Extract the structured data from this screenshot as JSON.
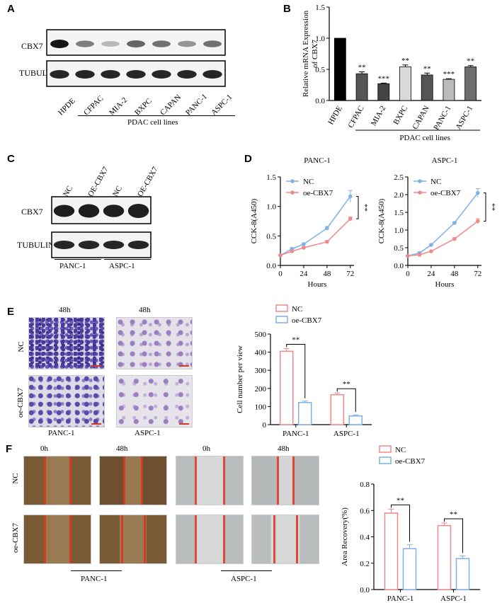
{
  "panels": {
    "A": "A",
    "B": "B",
    "C": "C",
    "D": "D",
    "E": "E",
    "F": "F"
  },
  "blotA": {
    "rows": [
      "CBX7",
      "TUBULIN"
    ],
    "lanes": [
      "HPDE",
      "CFPAC",
      "MIA-2",
      "BXPC",
      "CAPAN",
      "PANC-1",
      "ASPC-1"
    ],
    "group_label": "PDAC cell lines",
    "cbx7_intensity": [
      1.0,
      0.55,
      0.3,
      0.65,
      0.6,
      0.45,
      0.6
    ]
  },
  "blotC": {
    "rows": [
      "CBX7",
      "TUBULIN"
    ],
    "lanes": [
      "NC",
      "OE-CBX7",
      "NC",
      "OE-CBX7"
    ],
    "groups": [
      "PANC-1",
      "ASPC-1"
    ],
    "cbx7_intensity": [
      0.7,
      0.9,
      0.75,
      1.0
    ]
  },
  "imagesE": {
    "col_headers": [
      "48h",
      "48h"
    ],
    "row_labels": [
      "NC",
      "oe-CBX7"
    ],
    "col_footers": [
      "PANC-1",
      "ASPC-1"
    ]
  },
  "imagesF": {
    "col_headers": [
      "0h",
      "48h",
      "0h",
      "48h"
    ],
    "row_labels": [
      "NC",
      "oe-CBX7"
    ],
    "group_labels": [
      "PANC-1",
      "ASPC-1"
    ]
  },
  "chart_data": [
    {
      "id": "B",
      "type": "bar",
      "categories": [
        "HPDE",
        "CFPAC",
        "MIA-2",
        "BXPC",
        "CAPAN",
        "PANC-1",
        "ASPC-1"
      ],
      "values": [
        1.0,
        0.43,
        0.27,
        0.54,
        0.41,
        0.34,
        0.54
      ],
      "errors": [
        0,
        0.03,
        0.01,
        0.03,
        0.03,
        0.01,
        0.02
      ],
      "significance": [
        "",
        "**",
        "***",
        "**",
        "**",
        "***",
        "**"
      ],
      "colors": [
        "#000000",
        "#555555",
        "#444444",
        "#d9d9d9",
        "#555555",
        "#bbbbbb",
        "#6e6e6e"
      ],
      "ylabel": "Relative  mRNA Expression of CBX7",
      "yticks": [
        "0.0",
        "0.5",
        "1.0",
        "1.5"
      ],
      "ylim": [
        0,
        1.5
      ],
      "group_label": "PDAC cell lines"
    },
    {
      "id": "D1",
      "type": "line",
      "title": "PANC-1",
      "x": [
        0,
        12,
        24,
        48,
        72
      ],
      "xticks": [
        "0",
        "24",
        "48",
        "72"
      ],
      "xlabel": "Hours",
      "ylabel": "CCK-8(A450)",
      "yticks": [
        "0.0",
        "0.5",
        "1.0",
        "1.5"
      ],
      "ylim": [
        0,
        1.5
      ],
      "significance": "**",
      "series": [
        {
          "name": "NC",
          "values": [
            0.17,
            0.28,
            0.36,
            0.63,
            1.17
          ],
          "errors": [
            0.01,
            0.02,
            0.02,
            0.03,
            0.1
          ],
          "color": "#7fb0e8"
        },
        {
          "name": "oe-CBX7",
          "values": [
            0.17,
            0.24,
            0.3,
            0.4,
            0.79
          ],
          "errors": [
            0.01,
            0.01,
            0.02,
            0.02,
            0.03
          ],
          "color": "#f08a8a"
        }
      ]
    },
    {
      "id": "D2",
      "type": "line",
      "title": "ASPC-1",
      "x": [
        0,
        12,
        24,
        48,
        72
      ],
      "xticks": [
        "0",
        "24",
        "48",
        "72"
      ],
      "xlabel": "Hours",
      "ylabel": "CCK-8(A450)",
      "yticks": [
        "0.0",
        "0.5",
        "1.0",
        "1.5",
        "2.0",
        "2.5"
      ],
      "ylim": [
        0,
        2.5
      ],
      "significance": "**",
      "series": [
        {
          "name": "NC",
          "values": [
            0.27,
            0.35,
            0.58,
            1.2,
            2.05
          ],
          "errors": [
            0.01,
            0.02,
            0.02,
            0.03,
            0.12
          ],
          "color": "#7fb0e8"
        },
        {
          "name": "oe-CBX7",
          "values": [
            0.27,
            0.3,
            0.4,
            0.75,
            1.25
          ],
          "errors": [
            0.01,
            0.02,
            0.02,
            0.03,
            0.07
          ],
          "color": "#f08a8a"
        }
      ]
    },
    {
      "id": "E",
      "type": "bar",
      "categories": [
        "PANC-1",
        "ASPC-1"
      ],
      "ylabel": "Cell number per view",
      "yticks": [
        "0",
        "100",
        "200",
        "300",
        "400",
        "500"
      ],
      "ylim": [
        0,
        500
      ],
      "significance": [
        "**",
        "**"
      ],
      "series": [
        {
          "name": "NC",
          "values": [
            405,
            165
          ],
          "errors": [
            15,
            10
          ],
          "color": "#f08a8a"
        },
        {
          "name": "oe-CBX7",
          "values": [
            122,
            48
          ],
          "errors": [
            8,
            6
          ],
          "color": "#7fb0e8"
        }
      ]
    },
    {
      "id": "F",
      "type": "bar",
      "categories": [
        "PANC-1",
        "ASPC-1"
      ],
      "ylabel": "Area Recovery(%)",
      "yticks": [
        "0.0",
        "0.2",
        "0.4",
        "0.6",
        "0.8"
      ],
      "ylim": [
        0,
        0.8
      ],
      "significance": [
        "**",
        "**"
      ],
      "series": [
        {
          "name": "NC",
          "values": [
            0.58,
            0.485
          ],
          "errors": [
            0.03,
            0.02
          ],
          "color": "#f08a8a"
        },
        {
          "name": "oe-CBX7",
          "values": [
            0.31,
            0.235
          ],
          "errors": [
            0.03,
            0.02
          ],
          "color": "#7fb0e8"
        }
      ]
    }
  ]
}
